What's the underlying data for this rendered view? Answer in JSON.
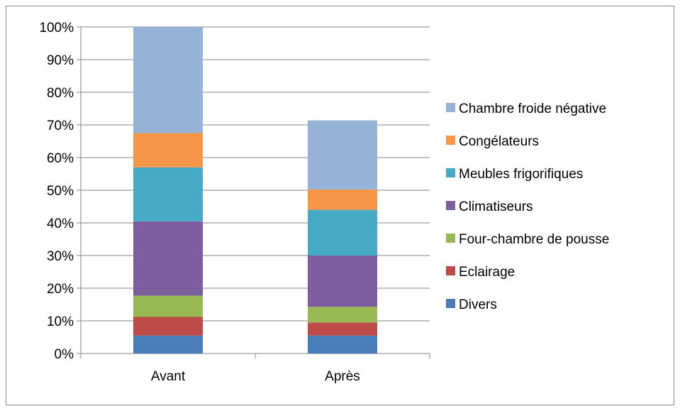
{
  "chart_data": {
    "type": "stacked-bar",
    "title": "",
    "xlabel": "",
    "ylabel": "",
    "ylim": [
      0,
      100
    ],
    "y_unit": "%",
    "grid": true,
    "legend_position": "right",
    "categories": [
      "Avant",
      "Après"
    ],
    "y_ticks": [
      0,
      10,
      20,
      30,
      40,
      50,
      60,
      70,
      80,
      90,
      100
    ],
    "y_tick_labels": [
      "0%",
      "10%",
      "20%",
      "30%",
      "40%",
      "50%",
      "60%",
      "70%",
      "80%",
      "90%",
      "100%"
    ],
    "series": [
      {
        "name": "Divers",
        "color": "#4a7ebb",
        "values": [
          5.5,
          5.5
        ]
      },
      {
        "name": "Eclairage",
        "color": "#be4b48",
        "values": [
          5.7,
          4.0
        ]
      },
      {
        "name": "Four-chambre de pousse",
        "color": "#98b954",
        "values": [
          6.5,
          4.8
        ]
      },
      {
        "name": "Climatiseurs",
        "color": "#7d5fa0",
        "values": [
          22.8,
          15.7
        ]
      },
      {
        "name": "Meubles frigorifiques",
        "color": "#46aac5",
        "values": [
          16.5,
          14.0
        ]
      },
      {
        "name": "Congélateurs",
        "color": "#f79646",
        "values": [
          10.5,
          6.2
        ]
      },
      {
        "name": "Chambre froide négative",
        "color": "#95b3d7",
        "values": [
          32.5,
          21.2
        ]
      }
    ]
  }
}
